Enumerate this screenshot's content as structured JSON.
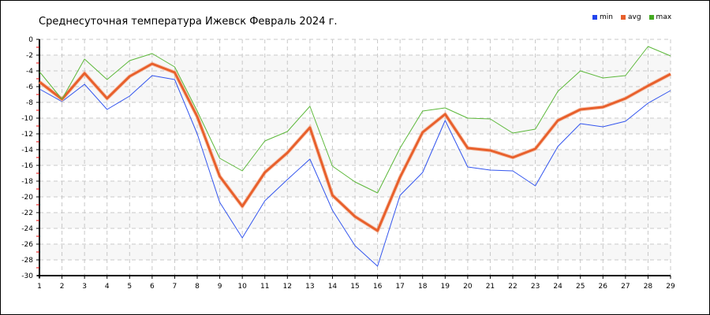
{
  "chart_data": {
    "type": "line",
    "title": "Среднесуточная температура Ижевск  Февраль 2024 г.",
    "xlabel": "",
    "ylabel": "",
    "x": [
      1,
      2,
      3,
      4,
      5,
      6,
      7,
      8,
      9,
      10,
      11,
      12,
      13,
      14,
      15,
      16,
      17,
      18,
      19,
      20,
      21,
      22,
      23,
      24,
      25,
      26,
      27,
      28,
      29
    ],
    "ylim": [
      -30,
      0
    ],
    "yticks": [
      0,
      -2,
      -4,
      -6,
      -8,
      -10,
      -12,
      -14,
      -16,
      -18,
      -20,
      -22,
      -24,
      -26,
      -28,
      -30
    ],
    "grid": true,
    "legend_position": "top-right",
    "series": [
      {
        "name": "min",
        "color": "#3355ee",
        "values": [
          -6.3,
          -7.9,
          -5.7,
          -8.9,
          -7.2,
          -4.6,
          -5.1,
          -12.0,
          -20.7,
          -25.2,
          -20.5,
          -17.8,
          -15.2,
          -21.7,
          -26.2,
          -28.8,
          -19.8,
          -16.9,
          -10.3,
          -16.2,
          -16.6,
          -16.7,
          -18.6,
          -13.6,
          -10.7,
          -11.1,
          -10.4,
          -8.1,
          -6.5
        ]
      },
      {
        "name": "avg",
        "color": "#e8602c",
        "values": [
          -5.4,
          -7.6,
          -4.3,
          -7.5,
          -4.7,
          -3.1,
          -4.2,
          -9.8,
          -17.4,
          -21.2,
          -16.9,
          -14.4,
          -11.2,
          -19.8,
          -22.5,
          -24.3,
          -17.5,
          -11.8,
          -9.5,
          -13.8,
          -14.1,
          -15.0,
          -13.9,
          -10.3,
          -8.9,
          -8.6,
          -7.5,
          -5.9,
          -4.4
        ]
      },
      {
        "name": "max",
        "color": "#5cb83a",
        "values": [
          -4.1,
          -7.6,
          -2.5,
          -5.1,
          -2.7,
          -1.8,
          -3.5,
          -9.1,
          -15.1,
          -16.7,
          -12.9,
          -11.7,
          -8.5,
          -16.1,
          -18.1,
          -19.5,
          -13.8,
          -9.1,
          -8.7,
          -10.0,
          -10.1,
          -11.9,
          -11.4,
          -6.6,
          -4.0,
          -4.9,
          -4.6,
          -0.9,
          -2.1
        ]
      }
    ]
  }
}
